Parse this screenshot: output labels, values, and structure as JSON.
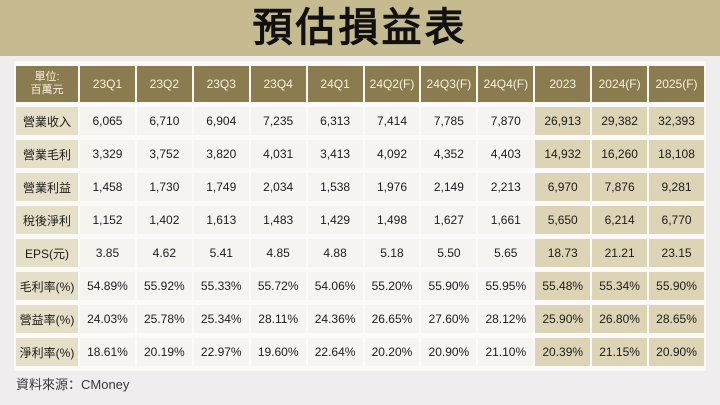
{
  "title": "預估損益表",
  "footer": {
    "source": "資料來源：CMoney"
  },
  "colors": {
    "title_band": "#c6bb8e",
    "page_background": "#efedee",
    "header_background": "#8a7c4f",
    "header_text": "#f6f2e2",
    "row_label_background": "#e5dfc7",
    "quarter_cell_background": "#f5f4f1",
    "annual_cell_background": "#ddd3b5",
    "cell_text": "#1c1c1c"
  },
  "chart_data": {
    "type": "table",
    "title": "預估損益表",
    "unit_line1": "單位:",
    "unit_line2": "百萬元",
    "columns": [
      "23Q1",
      "23Q2",
      "23Q3",
      "23Q4",
      "24Q1",
      "24Q2(F)",
      "24Q3(F)",
      "24Q4(F)",
      "2023",
      "2024(F)",
      "2025(F)"
    ],
    "annual_columns_start_index": 8,
    "rows": [
      {
        "label": "營業收入",
        "values": [
          "6,065",
          "6,710",
          "6,904",
          "7,235",
          "6,313",
          "7,414",
          "7,785",
          "7,870",
          "26,913",
          "29,382",
          "32,393"
        ]
      },
      {
        "label": "營業毛利",
        "values": [
          "3,329",
          "3,752",
          "3,820",
          "4,031",
          "3,413",
          "4,092",
          "4,352",
          "4,403",
          "14,932",
          "16,260",
          "18,108"
        ]
      },
      {
        "label": "營業利益",
        "values": [
          "1,458",
          "1,730",
          "1,749",
          "2,034",
          "1,538",
          "1,976",
          "2,149",
          "2,213",
          "6,970",
          "7,876",
          "9,281"
        ]
      },
      {
        "label": "稅後淨利",
        "values": [
          "1,152",
          "1,402",
          "1,613",
          "1,483",
          "1,429",
          "1,498",
          "1,627",
          "1,661",
          "5,650",
          "6,214",
          "6,770"
        ]
      },
      {
        "label": "EPS(元)",
        "values": [
          "3.85",
          "4.62",
          "5.41",
          "4.85",
          "4.88",
          "5.18",
          "5.50",
          "5.65",
          "18.73",
          "21.21",
          "23.15"
        ]
      },
      {
        "label": "毛利率(%)",
        "values": [
          "54.89%",
          "55.92%",
          "55.33%",
          "55.72%",
          "54.06%",
          "55.20%",
          "55.90%",
          "55.95%",
          "55.48%",
          "55.34%",
          "55.90%"
        ]
      },
      {
        "label": "營益率(%)",
        "values": [
          "24.03%",
          "25.78%",
          "25.34%",
          "28.11%",
          "24.36%",
          "26.65%",
          "27.60%",
          "28.12%",
          "25.90%",
          "26.80%",
          "28.65%"
        ]
      },
      {
        "label": "淨利率(%)",
        "values": [
          "18.61%",
          "20.19%",
          "22.97%",
          "19.60%",
          "22.64%",
          "20.20%",
          "20.90%",
          "21.10%",
          "20.39%",
          "21.15%",
          "20.90%"
        ]
      }
    ],
    "source": "資料來源：CMoney"
  }
}
